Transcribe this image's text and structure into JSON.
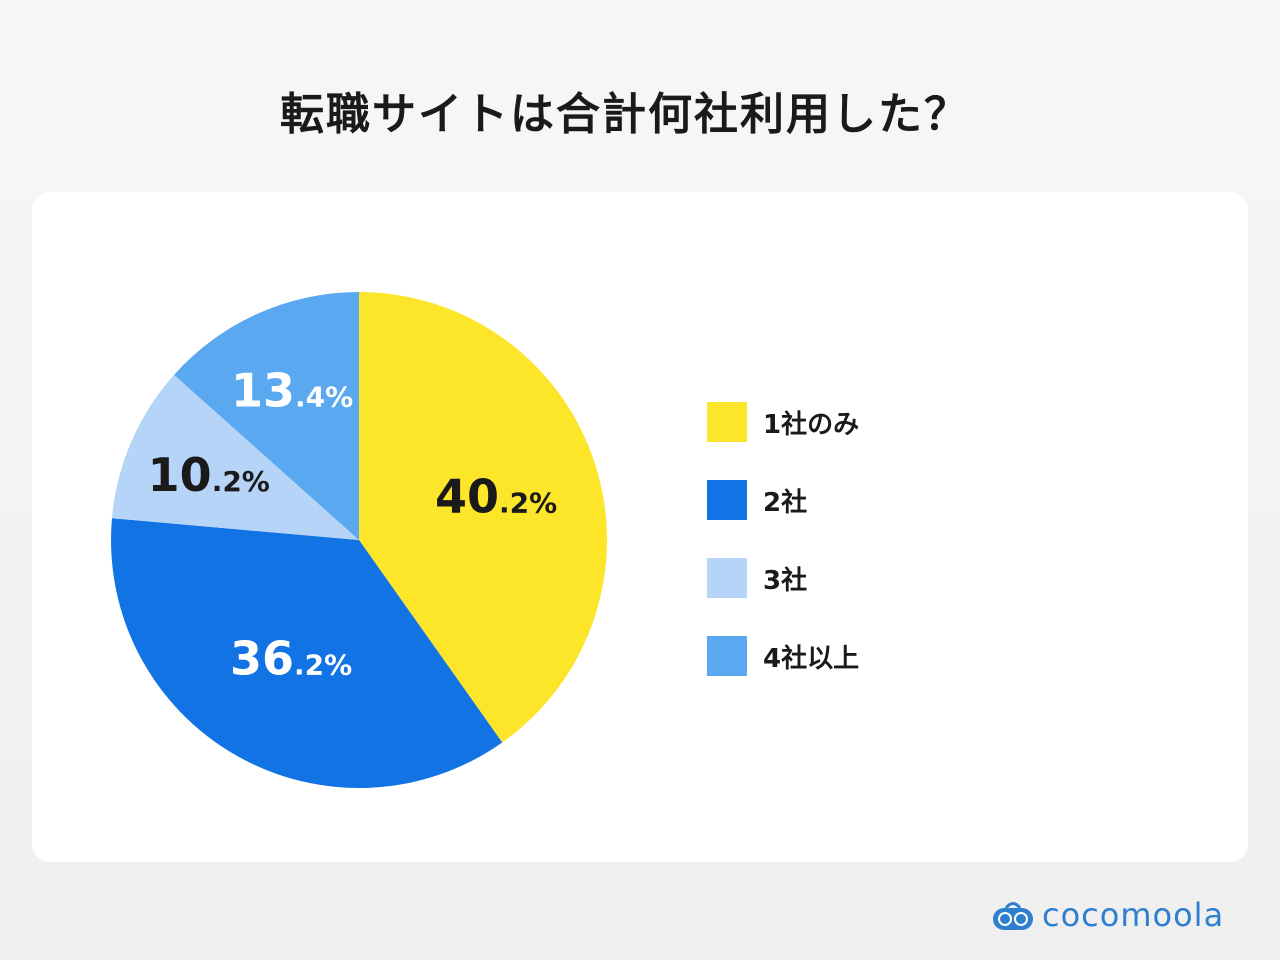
{
  "title": "転職サイトは合計何社利用した？",
  "chart_data": {
    "type": "pie",
    "title": "転職サイトは合計何社利用した？",
    "start": "top",
    "direction": "clockwise",
    "slices": [
      {
        "label": "1社のみ",
        "value": 40.2,
        "color": "#FDE52A",
        "label_main": "40",
        "label_small": ".2%",
        "text_color": "#1a1a1a"
      },
      {
        "label": "2社",
        "value": 36.2,
        "color": "#1273E4",
        "label_main": "36",
        "label_small": ".2%",
        "text_color": "#ffffff"
      },
      {
        "label": "3社",
        "value": 10.2,
        "color": "#B5D4F7",
        "label_main": "10",
        "label_small": ".2%",
        "text_color": "#1a1a1a"
      },
      {
        "label": "4社以上",
        "value": 13.4,
        "color": "#5AA8F0",
        "label_main": "13",
        "label_small": ".4%",
        "text_color": "#ffffff"
      }
    ],
    "legend_position": "right"
  },
  "brand": "cocomoola"
}
